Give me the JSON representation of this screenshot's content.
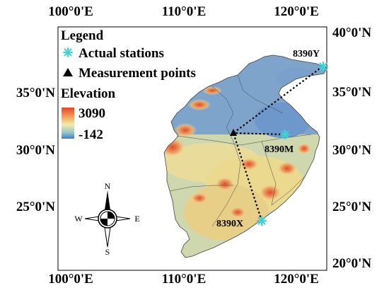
{
  "map": {
    "axis": {
      "top": [
        "100°0'E",
        "110°0'E",
        "120°0'E"
      ],
      "bottom": [
        "100°0'E",
        "110°0'E",
        "120°0'E"
      ],
      "left": [
        "35°0'N",
        "30°0'N",
        "25°0'N"
      ],
      "right": [
        "40°0'N",
        "35°0'N",
        "30°0'N",
        "25°0'N",
        "20°0'N"
      ]
    },
    "legend": {
      "title": "Legend",
      "stations_label": "Actual stations",
      "points_label": "Measurement points",
      "elevation_title": "Elevation",
      "elevation_max": "3090",
      "elevation_min": "-142",
      "station_color": "#3fd0d8",
      "point_color": "#000000"
    },
    "stations": [
      {
        "id": "8390Y",
        "label": "8390Y"
      },
      {
        "id": "8390M",
        "label": "8390M"
      },
      {
        "id": "8390X",
        "label": "8390X"
      }
    ],
    "compass": {
      "north": "N",
      "south": "S",
      "east": "E",
      "west": "W"
    },
    "colors": {
      "low_elevation": "#5f8fc9",
      "mid_elevation": "#e8e6a0",
      "high_elevation": "#e2552d"
    }
  }
}
